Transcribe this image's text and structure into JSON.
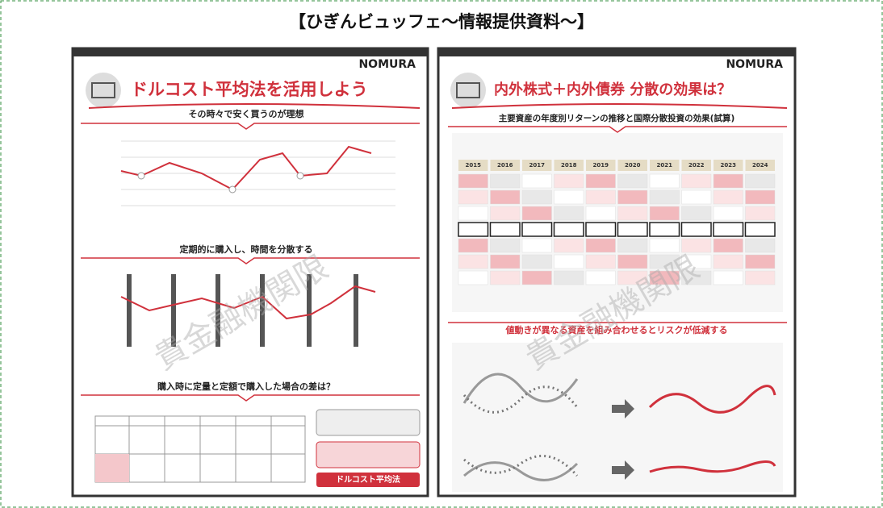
{
  "header": {
    "title": "【ひぎんビュッフェ～情報提供資料～】"
  },
  "pages": [
    {
      "logo": "NOMURA",
      "title": "ドルコスト平均法を活用しよう",
      "sections": [
        "その時々で安く買うのが理想",
        "定期的に購入し、時間を分散する",
        "購入時に定量と定額で購入した場合の差は？"
      ],
      "badge": "ドルコスト平均法",
      "watermark": "貴金融機関限"
    },
    {
      "logo": "NOMURA",
      "title": "内外株式＋内外債券 分散の効果は？",
      "sections": [
        "主要資産の年度別リターンの推移と国際分散投資の効果(試算)",
        "値動きが異なる資産を組み合わせるとリスクが低減する"
      ],
      "years": [
        "2015",
        "2016",
        "2017",
        "2018",
        "2019",
        "2020",
        "2021",
        "2022",
        "2023",
        "2024"
      ],
      "watermark": "貴金融機関限"
    }
  ]
}
